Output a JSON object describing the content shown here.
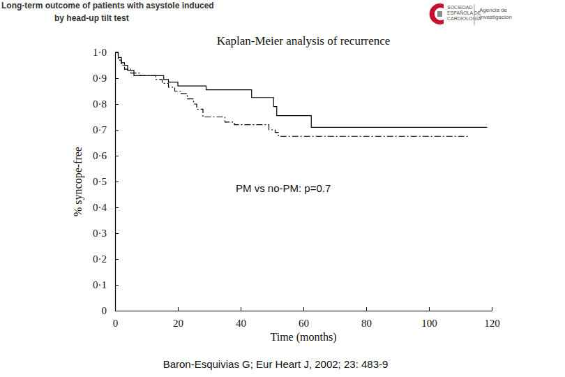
{
  "page": {
    "header": [
      "Long-term outcome of patients with asystole induced",
      "by head-up tilt test"
    ],
    "logo": [
      "SOCIEDAD",
      "ESPAÑOLA DE",
      "CARDIOLOGÍA"
    ],
    "agency": [
      "Agencia de",
      "Investigación"
    ],
    "source": "Baron-Esquivias G; Eur Heart J, 2002; 23: 483-9"
  },
  "chart_data": {
    "type": "line",
    "title": "Kaplan-Meier analysis of recurrence",
    "x_label": "Time (months)",
    "y_label": "% syncope-free",
    "annotation": "PM vs no-PM: p=0.7",
    "xlim": [
      0,
      120
    ],
    "ylim": [
      0,
      1.0
    ],
    "xticks": [
      0,
      20,
      40,
      60,
      80,
      100,
      120
    ],
    "yticks": [
      0,
      {
        "value": 0.1,
        "label": "0·1"
      },
      {
        "value": 0.2,
        "label": "0·2"
      },
      {
        "value": 0.3,
        "label": "0·3"
      },
      {
        "value": 0.4,
        "label": "0·4"
      },
      {
        "value": 0.5,
        "label": "0·5"
      },
      {
        "value": 0.6,
        "label": "0·6"
      },
      {
        "value": 0.7,
        "label": "0·7"
      },
      {
        "value": 0.8,
        "label": "0·8"
      },
      {
        "value": 0.9,
        "label": "0·9"
      },
      {
        "value": 1.0,
        "label": "1·0"
      }
    ],
    "grid": false,
    "series": [
      {
        "color": "#000000",
        "line_style": "solid",
        "x": [
          0,
          1,
          2,
          3,
          4,
          6,
          15.5,
          17,
          20,
          29,
          43.5,
          50.5,
          51.5,
          62.5,
          118.5
        ],
        "values": [
          1.0,
          0.98,
          0.96,
          0.95,
          0.93,
          0.91,
          0.895,
          0.885,
          0.87,
          0.855,
          0.825,
          0.79,
          0.755,
          0.71,
          0.71
        ]
      },
      {
        "color": "#000000",
        "line_style": "dashdot",
        "x": [
          0,
          1,
          2,
          3,
          5,
          8,
          13,
          15,
          17,
          19,
          21,
          23,
          25,
          26,
          28,
          35,
          38,
          49,
          51,
          52,
          113
        ],
        "values": [
          1.0,
          0.97,
          0.95,
          0.935,
          0.92,
          0.91,
          0.895,
          0.88,
          0.865,
          0.85,
          0.84,
          0.82,
          0.8,
          0.78,
          0.75,
          0.73,
          0.72,
          0.7,
          0.69,
          0.675,
          0.675
        ]
      }
    ]
  }
}
